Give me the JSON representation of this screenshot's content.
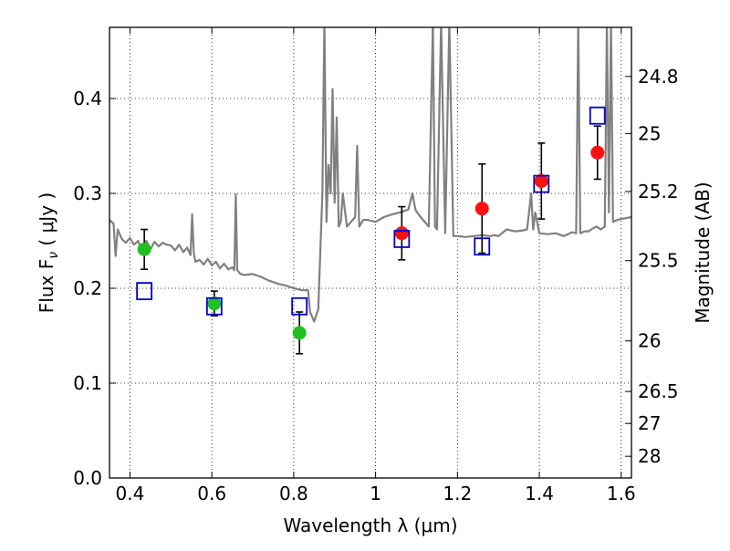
{
  "chart_data": {
    "type": "scatter",
    "xlabel": "Wavelength  λ (μm)",
    "ylabel": "Flux  F",
    "ylabel_subscript": "ν",
    "ylabel_unit": "  ( μJy )",
    "y2label": "Magnitude (AB)",
    "xlim": [
      0.35,
      1.625
    ],
    "ylim": [
      0.0,
      0.475
    ],
    "x_ticks": [
      0.4,
      0.6,
      0.8,
      1.0,
      1.2,
      1.4,
      1.6
    ],
    "x_tick_labels": [
      "0.4",
      "0.6",
      "0.8",
      "1",
      "1.2",
      "1.4",
      "1.6"
    ],
    "y_ticks": [
      0.0,
      0.1,
      0.2,
      0.3,
      0.4
    ],
    "y_tick_labels": [
      "0.0",
      "0.1",
      "0.2",
      "0.3",
      "0.4"
    ],
    "y2_ticks": [
      {
        "label": "24.8",
        "flux": 0.4233
      },
      {
        "label": "25",
        "flux": 0.3631
      },
      {
        "label": "25.2",
        "flux": 0.302
      },
      {
        "label": "25.5",
        "flux": 0.2291
      },
      {
        "label": "26",
        "flux": 0.1445
      },
      {
        "label": "26.5",
        "flux": 0.0912
      },
      {
        "label": "27",
        "flux": 0.0575
      },
      {
        "label": "28",
        "flux": 0.0229
      }
    ],
    "grid": true,
    "colors": {
      "spectrum": "#808080",
      "observed_optical": "#20c020",
      "observed_nir": "#ff1010",
      "model": "#0000cc",
      "errorbar": "#000000"
    },
    "series": [
      {
        "marker": "circle",
        "color": "#20c020",
        "points": [
          {
            "x": 0.435,
            "y": 0.241,
            "err": 0.021
          },
          {
            "x": 0.606,
            "y": 0.184,
            "err": 0.013
          },
          {
            "x": 0.814,
            "y": 0.153,
            "err": 0.022
          }
        ]
      },
      {
        "marker": "circle",
        "color": "#ff1010",
        "points": [
          {
            "x": 1.064,
            "y": 0.258,
            "err": 0.028
          },
          {
            "x": 1.26,
            "y": 0.284,
            "err": 0.047
          },
          {
            "x": 1.405,
            "y": 0.313,
            "err": 0.04
          },
          {
            "x": 1.542,
            "y": 0.343,
            "err": 0.028
          }
        ]
      },
      {
        "marker": "open-square",
        "color": "#0000cc",
        "points": [
          {
            "x": 0.435,
            "y": 0.197
          },
          {
            "x": 0.606,
            "y": 0.181
          },
          {
            "x": 0.814,
            "y": 0.181
          },
          {
            "x": 1.064,
            "y": 0.252
          },
          {
            "x": 1.26,
            "y": 0.244
          },
          {
            "x": 1.405,
            "y": 0.31
          },
          {
            "x": 1.542,
            "y": 0.382
          }
        ]
      },
      {
        "marker": "line",
        "color": "#808080",
        "x": [
          0.35,
          0.36,
          0.365,
          0.37,
          0.38,
          0.39,
          0.4,
          0.41,
          0.42,
          0.43,
          0.44,
          0.45,
          0.46,
          0.47,
          0.48,
          0.49,
          0.5,
          0.51,
          0.52,
          0.53,
          0.54,
          0.548,
          0.552,
          0.556,
          0.56,
          0.57,
          0.58,
          0.59,
          0.6,
          0.61,
          0.62,
          0.63,
          0.64,
          0.65,
          0.655,
          0.6585,
          0.662,
          0.67,
          0.68,
          0.7,
          0.72,
          0.74,
          0.76,
          0.78,
          0.8,
          0.82,
          0.835,
          0.84,
          0.85,
          0.86,
          0.87,
          0.875,
          0.88,
          0.885,
          0.89,
          0.895,
          0.9,
          0.905,
          0.91,
          0.915,
          0.92,
          0.93,
          0.94,
          0.95,
          0.955,
          0.96,
          0.97,
          0.98,
          1.0,
          1.02,
          1.04,
          1.06,
          1.08,
          1.09,
          1.094,
          1.098,
          1.11,
          1.13,
          1.14,
          1.145,
          1.15,
          1.16,
          1.17,
          1.18,
          1.19,
          1.2,
          1.22,
          1.24,
          1.26,
          1.28,
          1.29,
          1.3,
          1.32,
          1.34,
          1.36,
          1.37,
          1.38,
          1.385,
          1.39,
          1.4,
          1.42,
          1.44,
          1.46,
          1.48,
          1.49,
          1.495,
          1.5,
          1.51,
          1.52,
          1.53,
          1.54,
          1.55,
          1.56,
          1.565,
          1.57,
          1.575,
          1.58,
          1.59,
          1.6,
          1.625
        ],
        "y": [
          0.272,
          0.268,
          0.234,
          0.262,
          0.252,
          0.248,
          0.253,
          0.246,
          0.25,
          0.238,
          0.25,
          0.241,
          0.249,
          0.244,
          0.248,
          0.246,
          0.245,
          0.24,
          0.246,
          0.238,
          0.243,
          0.235,
          0.278,
          0.237,
          0.228,
          0.23,
          0.225,
          0.231,
          0.224,
          0.228,
          0.221,
          0.226,
          0.22,
          0.222,
          0.219,
          0.299,
          0.219,
          0.215,
          0.214,
          0.215,
          0.212,
          0.208,
          0.205,
          0.203,
          0.2,
          0.198,
          0.198,
          0.175,
          0.165,
          0.178,
          0.3,
          0.48,
          0.27,
          0.33,
          0.3,
          0.41,
          0.29,
          0.38,
          0.265,
          0.27,
          0.3,
          0.265,
          0.27,
          0.275,
          0.35,
          0.265,
          0.272,
          0.272,
          0.27,
          0.275,
          0.278,
          0.28,
          0.283,
          0.3,
          0.29,
          0.282,
          0.275,
          0.265,
          0.48,
          0.265,
          0.262,
          0.48,
          0.258,
          0.48,
          0.255,
          0.255,
          0.254,
          0.255,
          0.256,
          0.255,
          0.256,
          0.255,
          0.262,
          0.26,
          0.261,
          0.262,
          0.3,
          0.262,
          0.28,
          0.258,
          0.257,
          0.258,
          0.255,
          0.259,
          0.258,
          0.48,
          0.258,
          0.26,
          0.26,
          0.263,
          0.265,
          0.262,
          0.265,
          0.48,
          0.28,
          0.48,
          0.27,
          0.272,
          0.273,
          0.275
        ]
      }
    ]
  }
}
